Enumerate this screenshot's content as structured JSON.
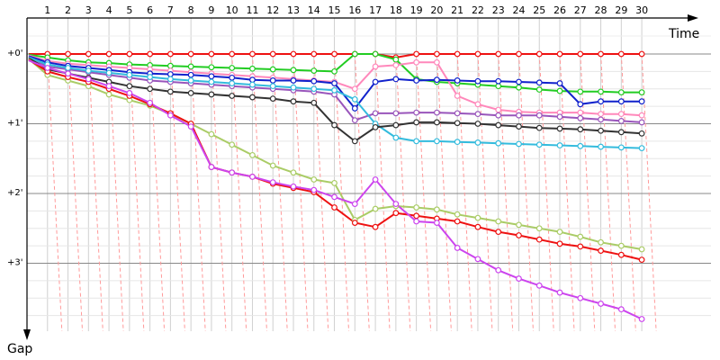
{
  "chart_data": {
    "type": "line",
    "xlabel": "Time",
    "ylabel": "Gap",
    "x": [
      1,
      2,
      3,
      4,
      5,
      6,
      7,
      8,
      9,
      10,
      11,
      12,
      13,
      14,
      15,
      16,
      17,
      18,
      19,
      20,
      21,
      22,
      23,
      24,
      25,
      26,
      27,
      28,
      29,
      30
    ],
    "y_ticks": [
      "+0'",
      "+1'",
      "+2'",
      "+3'"
    ],
    "ylim": [
      0,
      3.85
    ],
    "grid": true,
    "legend": "none",
    "series": [
      {
        "color": "#ee1111",
        "values": [
          0,
          0,
          0,
          0,
          0,
          0,
          0,
          0,
          0,
          0,
          0,
          0,
          0,
          0,
          0,
          0,
          0,
          0.05,
          0,
          0,
          0,
          0,
          0,
          0,
          0,
          0,
          0,
          0,
          0,
          0
        ]
      },
      {
        "color": "#22cc22",
        "values": [
          0.05,
          0.09,
          0.12,
          0.13,
          0.15,
          0.16,
          0.17,
          0.18,
          0.19,
          0.2,
          0.21,
          0.22,
          0.23,
          0.24,
          0.25,
          0,
          0,
          0.08,
          0.36,
          0.4,
          0.42,
          0.44,
          0.46,
          0.48,
          0.51,
          0.53,
          0.54,
          0.54,
          0.55,
          0.55
        ]
      },
      {
        "color": "#ff88bb",
        "values": [
          0.1,
          0.14,
          0.16,
          0.18,
          0.2,
          0.22,
          0.24,
          0.26,
          0.28,
          0.3,
          0.32,
          0.34,
          0.36,
          0.38,
          0.4,
          0.5,
          0.18,
          0.16,
          0.12,
          0.12,
          0.6,
          0.72,
          0.8,
          0.83,
          0.84,
          0.84,
          0.84,
          0.86,
          0.86,
          0.88
        ]
      },
      {
        "color": "#1122cc",
        "values": [
          0.12,
          0.17,
          0.2,
          0.23,
          0.26,
          0.28,
          0.29,
          0.3,
          0.32,
          0.34,
          0.37,
          0.38,
          0.38,
          0.39,
          0.42,
          0.78,
          0.4,
          0.36,
          0.38,
          0.37,
          0.38,
          0.39,
          0.39,
          0.4,
          0.41,
          0.42,
          0.72,
          0.68,
          0.68,
          0.68
        ]
      },
      {
        "color": "#9955bb",
        "values": [
          0.18,
          0.22,
          0.26,
          0.3,
          0.34,
          0.38,
          0.4,
          0.42,
          0.44,
          0.46,
          0.48,
          0.5,
          0.52,
          0.54,
          0.58,
          0.95,
          0.85,
          0.85,
          0.84,
          0.84,
          0.85,
          0.86,
          0.88,
          0.88,
          0.88,
          0.9,
          0.92,
          0.94,
          0.96,
          0.98
        ]
      },
      {
        "color": "#33bbdd",
        "values": [
          0.15,
          0.2,
          0.24,
          0.27,
          0.3,
          0.33,
          0.36,
          0.38,
          0.4,
          0.42,
          0.44,
          0.46,
          0.48,
          0.5,
          0.52,
          0.65,
          1.0,
          1.2,
          1.25,
          1.25,
          1.26,
          1.27,
          1.28,
          1.29,
          1.3,
          1.31,
          1.32,
          1.33,
          1.34,
          1.35
        ]
      },
      {
        "color": "#333333",
        "values": [
          0.22,
          0.28,
          0.34,
          0.4,
          0.46,
          0.5,
          0.54,
          0.56,
          0.58,
          0.6,
          0.62,
          0.64,
          0.68,
          0.7,
          1.02,
          1.25,
          1.05,
          1.02,
          0.98,
          0.98,
          0.99,
          1.0,
          1.02,
          1.04,
          1.06,
          1.07,
          1.08,
          1.1,
          1.12,
          1.14
        ]
      },
      {
        "color": "#aacc66",
        "values": [
          0.3,
          0.38,
          0.46,
          0.58,
          0.66,
          0.74,
          0.86,
          1.0,
          1.15,
          1.3,
          1.45,
          1.6,
          1.7,
          1.8,
          1.85,
          2.38,
          2.22,
          2.18,
          2.2,
          2.23,
          2.3,
          2.35,
          2.4,
          2.45,
          2.5,
          2.55,
          2.62,
          2.7,
          2.75,
          2.8
        ]
      },
      {
        "color": "#ee1111",
        "values": [
          0.25,
          0.33,
          0.4,
          0.5,
          0.6,
          0.72,
          0.85,
          1.0,
          1.62,
          1.7,
          1.76,
          1.86,
          1.92,
          1.98,
          2.2,
          2.42,
          2.48,
          2.28,
          2.32,
          2.36,
          2.4,
          2.48,
          2.55,
          2.6,
          2.66,
          2.72,
          2.76,
          2.82,
          2.88,
          2.95
        ]
      },
      {
        "color": "#cc44ee",
        "values": [
          0.2,
          0.28,
          0.36,
          0.46,
          0.56,
          0.7,
          0.88,
          1.04,
          1.62,
          1.7,
          1.76,
          1.84,
          1.9,
          1.95,
          2.05,
          2.15,
          1.8,
          2.15,
          2.4,
          2.42,
          2.78,
          2.94,
          3.1,
          3.22,
          3.32,
          3.42,
          3.5,
          3.58,
          3.66,
          3.8
        ]
      }
    ]
  }
}
